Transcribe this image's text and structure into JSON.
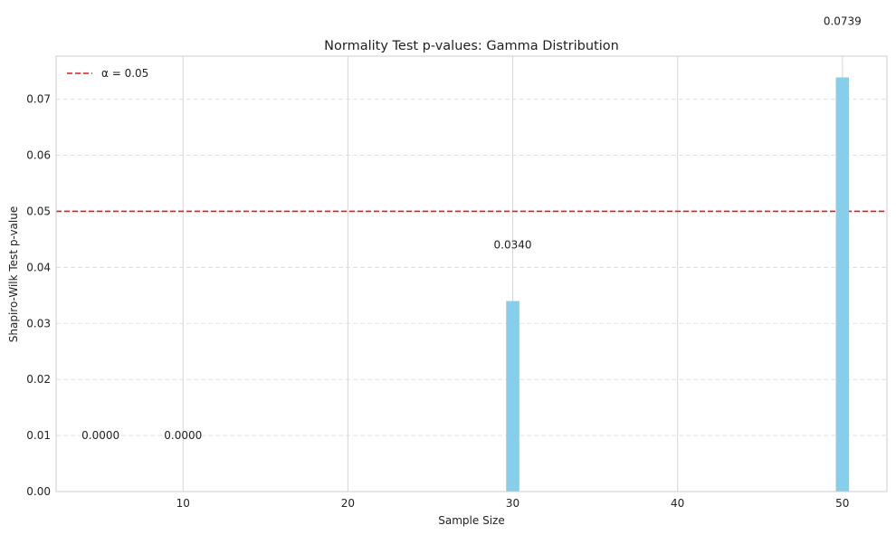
{
  "chart_data": {
    "type": "bar",
    "title": "Normality Test p-values: Gamma Distribution",
    "xlabel": "Sample Size",
    "ylabel": "Shapiro-Wilk Test p-value",
    "x": [
      5,
      10,
      30,
      50
    ],
    "values": [
      0.0,
      0.0,
      0.034,
      0.0739
    ],
    "bar_labels": [
      "0.0000",
      "0.0000",
      "0.0340",
      "0.0739"
    ],
    "bar_color": "#87ceeb",
    "xlim": [
      2.3,
      52.7
    ],
    "ylim": [
      0,
      0.0777
    ],
    "xticks": [
      10,
      20,
      30,
      40,
      50
    ],
    "xtick_labels": [
      "10",
      "20",
      "30",
      "40",
      "50"
    ],
    "yticks": [
      0,
      0.01,
      0.02,
      0.03,
      0.04,
      0.05,
      0.06,
      0.07
    ],
    "ytick_labels": [
      "0.00",
      "0.01",
      "0.02",
      "0.03",
      "0.04",
      "0.05",
      "0.06",
      "0.07"
    ],
    "threshold": {
      "value": 0.05,
      "label": "α = 0.05",
      "color": "#e31a1c",
      "style": "dashed"
    },
    "grid": true,
    "legend": {
      "placement": "top-left",
      "entries": [
        "α = 0.05"
      ]
    }
  }
}
